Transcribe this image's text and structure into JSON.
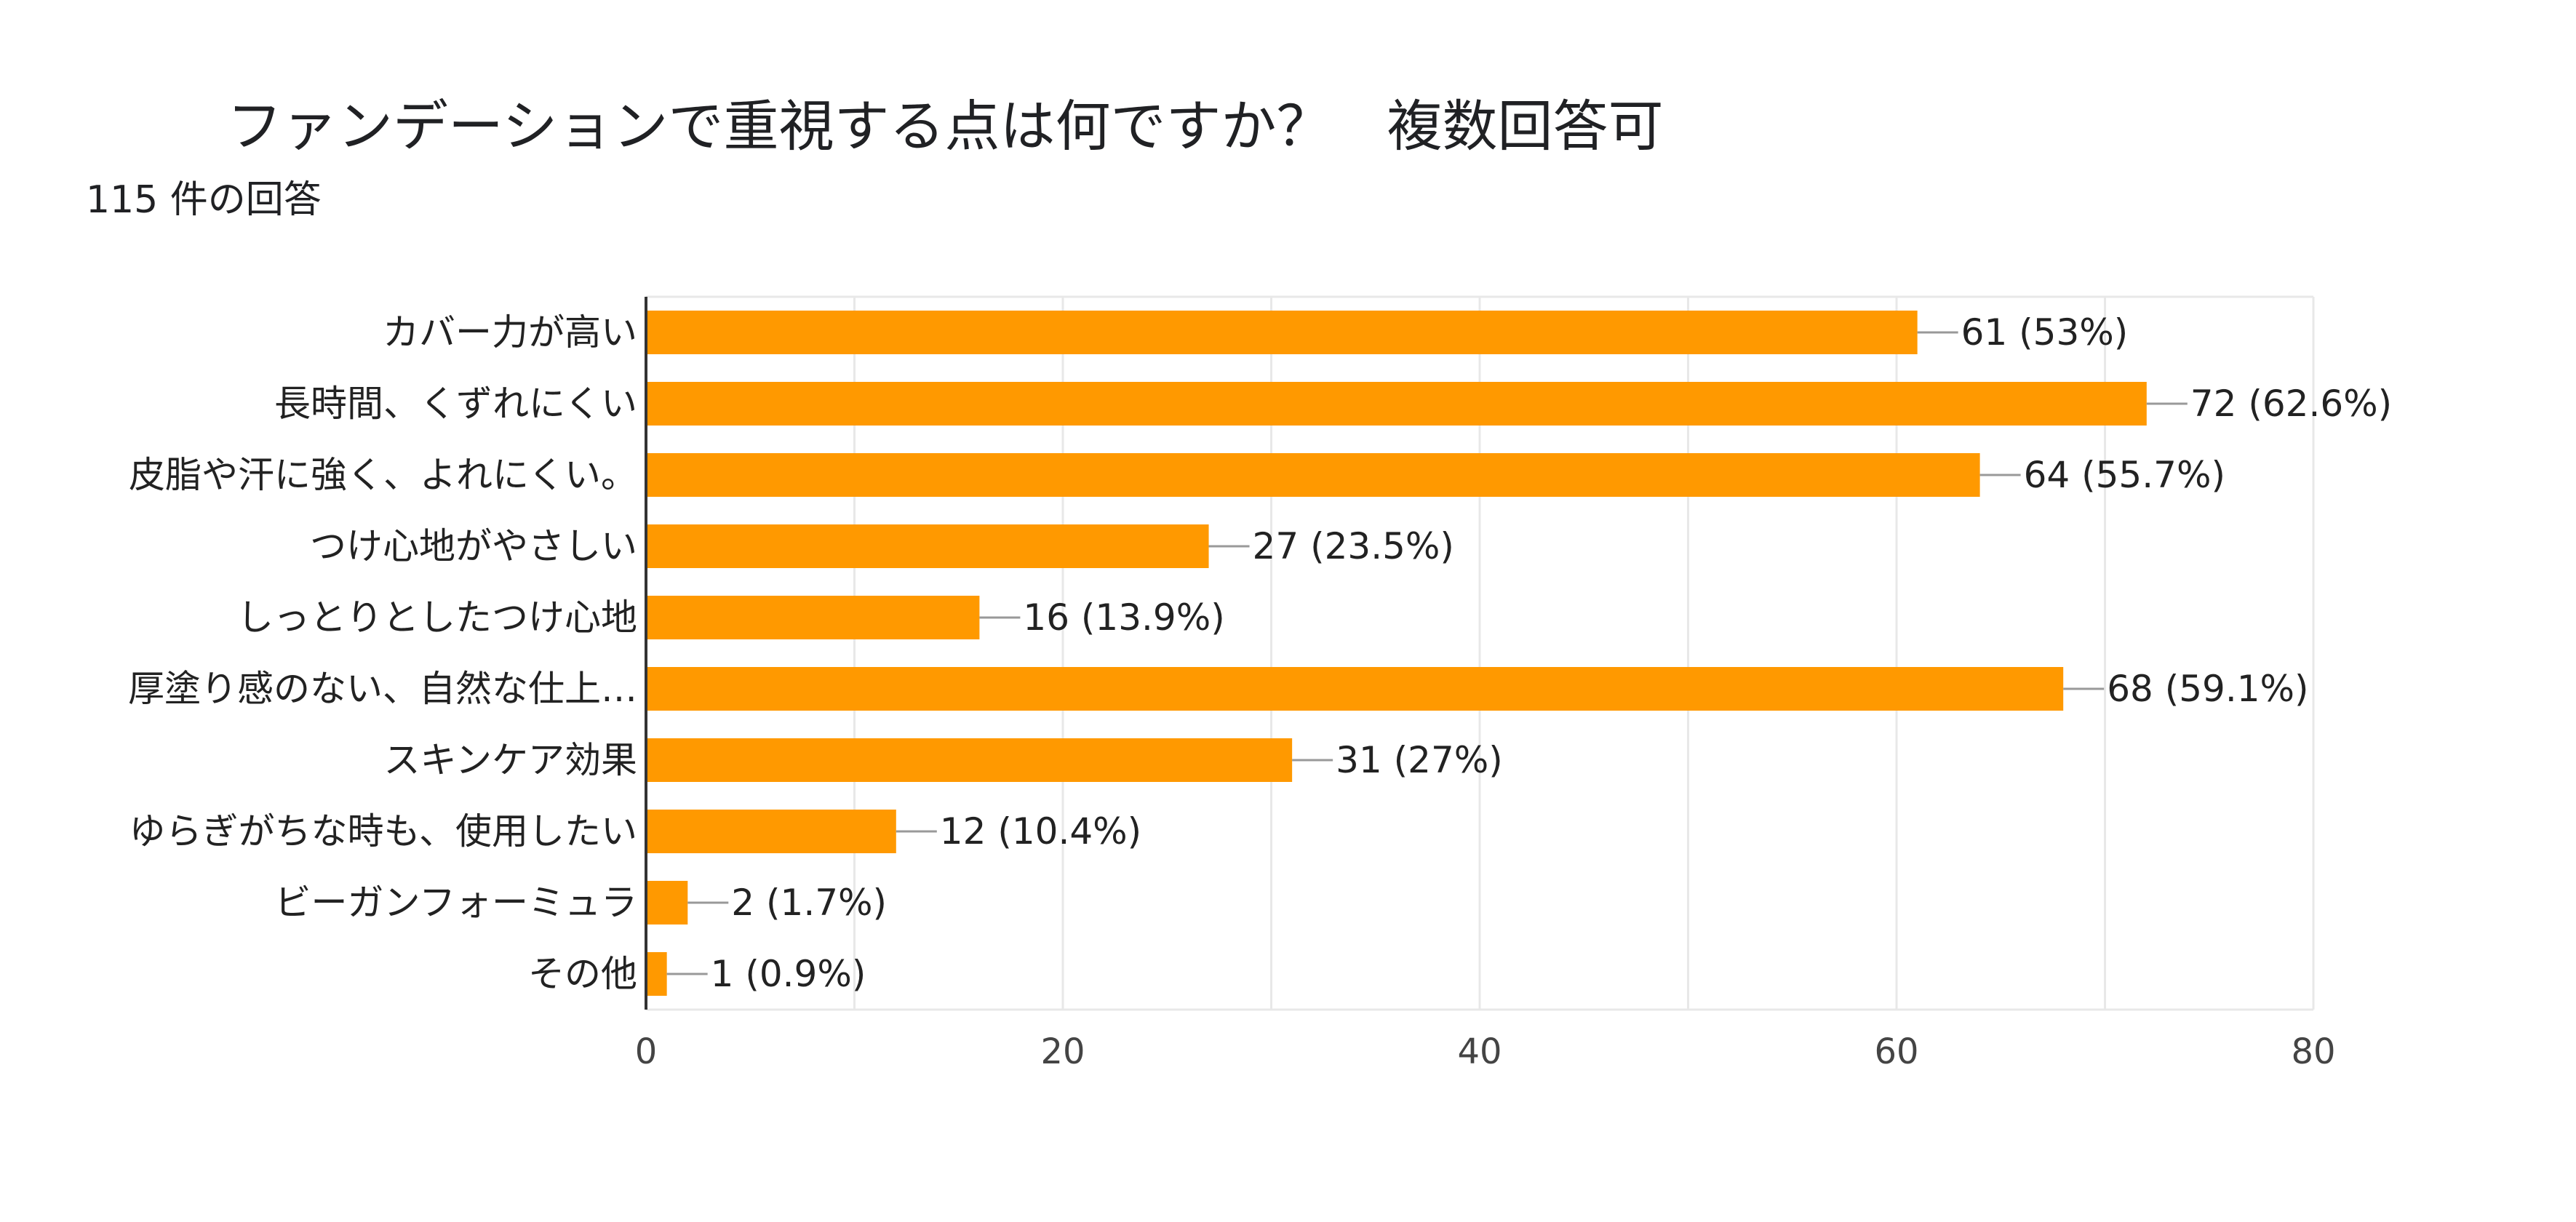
{
  "header": {
    "title": "ファンデーションで重視する点は何ですか？　複数回答可",
    "subtitle": "115 件の回答"
  },
  "colors": {
    "bar": "#FF9900",
    "grid": "#E8E8E8",
    "axis": "#333333",
    "connector": "#999999"
  },
  "chart_data": {
    "type": "bar",
    "orientation": "horizontal",
    "title": "ファンデーションで重視する点は何ですか？　複数回答可",
    "subtitle": "115 件の回答",
    "categories": [
      "カバー力が高い",
      "長時間、くずれにくい",
      "皮脂や汗に強く、よれにくい。",
      "つけ心地がやさしい",
      "しっとりとしたつけ心地",
      "厚塗り感のない、自然な仕上…",
      "スキンケア効果",
      "ゆらぎがちな時も、使用したい",
      "ビーガンフォーミュラ",
      "その他"
    ],
    "values": [
      61,
      72,
      64,
      27,
      16,
      68,
      31,
      12,
      2,
      1
    ],
    "value_labels": [
      "61 (53%)",
      "72 (62.6%)",
      "64 (55.7%)",
      "27 (23.5%)",
      "16 (13.9%)",
      "68 (59.1%)",
      "31 (27%)",
      "12 (10.4%)",
      "2 (1.7%)",
      "1 (0.9%)"
    ],
    "xlim": [
      0,
      80
    ],
    "xticks": [
      0,
      20,
      40,
      60,
      80
    ],
    "xlabel": "",
    "ylabel": "",
    "grid": true
  }
}
